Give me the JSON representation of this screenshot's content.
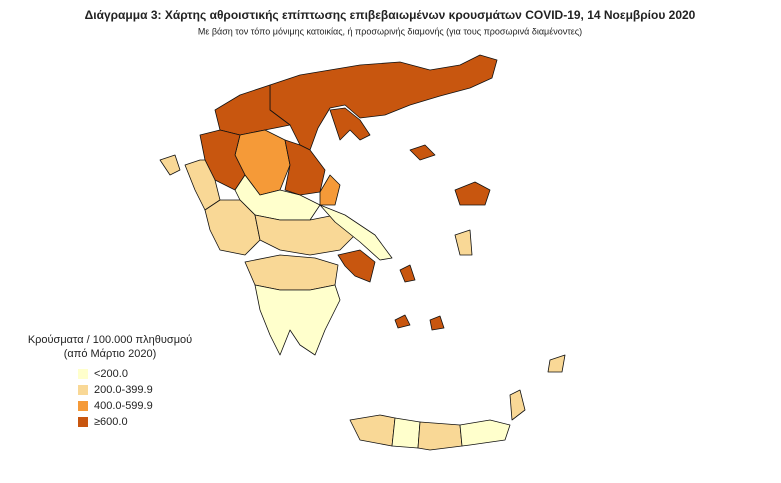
{
  "title": "Διάγραμμα 3: Χάρτης αθροιστικής επίπτωσης επιβεβαιωμένων κρουσμάτων COVID-19, 14 Νοεμβρίου 2020",
  "subtitle": "Με βάση τον τόπο μόνιμης κατοικίας, ή προσωρινής διαμονής (για τους προσωρινά διαμένοντες)",
  "legend": {
    "title_lines": [
      "Κρούσματα / 100.000 πληθυσμού",
      "(από Μάρτιο 2020)"
    ],
    "items": [
      {
        "label": "<200.0",
        "color": "#ffffcc"
      },
      {
        "label": "200.0-399.9",
        "color": "#f9d896"
      },
      {
        "label": "400.0-599.9",
        "color": "#f59a38"
      },
      {
        "label": "≥600.0",
        "color": "#c8560f"
      }
    ]
  }
}
